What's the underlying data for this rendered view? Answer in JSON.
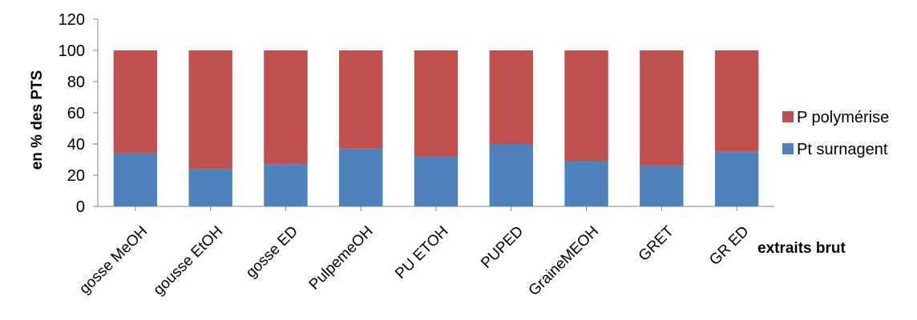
{
  "chart_data": {
    "type": "bar",
    "stacked": true,
    "categories": [
      "gosse MeOH",
      "gousse EtOH",
      "gosse ED",
      "PulpemeOH",
      "PU ETOH",
      "PUPED",
      "GraineMEOH",
      "GRET",
      "GR ED"
    ],
    "series": [
      {
        "name": "Pt surnagent",
        "color": "#4f81bd",
        "values": [
          34,
          24,
          27,
          37,
          32,
          40,
          29,
          26,
          35
        ]
      },
      {
        "name": "P polymérise",
        "color": "#c0504d",
        "values": [
          66,
          76,
          73,
          63,
          68,
          60,
          71,
          74,
          65
        ]
      }
    ],
    "ylim": [
      0,
      120
    ],
    "yticks": [
      0,
      20,
      40,
      60,
      80,
      100,
      120
    ],
    "ylabel": "en % des PTS",
    "xlabel": "extraits brut",
    "legend_position": "right",
    "grid": false
  }
}
